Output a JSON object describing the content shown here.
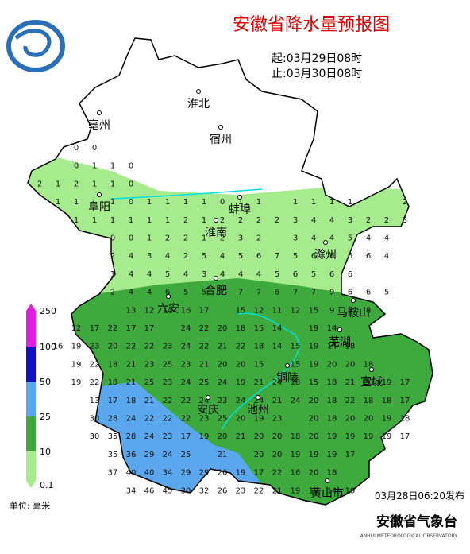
{
  "title": "安徽省降水量预报图",
  "period": {
    "start": "起:03月29日08时",
    "end": "止:03月30日08时"
  },
  "cities": [
    "淮北",
    "亳州",
    "宿州",
    "阜阳",
    "蚌埠",
    "淮南",
    "滁州",
    "合肥",
    "六安",
    "马鞍山",
    "芜湖",
    "铜陵",
    "宣城",
    "安庆",
    "池州",
    "黄山市"
  ],
  "legend": {
    "labels": [
      "250",
      "100",
      "50",
      "25",
      "10",
      "0.1"
    ],
    "unit": "单位: 毫米"
  },
  "footer": {
    "issued": "03月28日06:20发布",
    "agency": "安徽省气象台",
    "agency_en": "ANHUI METEOROLOGICAL OBSERVATORY"
  },
  "grid": {
    "rows": [
      [
        null,
        null,
        0,
        0,
        null,
        null,
        null,
        null,
        null,
        null,
        null,
        null,
        null,
        null,
        null,
        null,
        null,
        null,
        null,
        null,
        null
      ],
      [
        null,
        null,
        0,
        1,
        1,
        0,
        null,
        null,
        null,
        null,
        null,
        null,
        null,
        null,
        null,
        null,
        null,
        null,
        null,
        null,
        null
      ],
      [
        2,
        1,
        2,
        1,
        1,
        0,
        null,
        null,
        null,
        null,
        null,
        null,
        null,
        null,
        null,
        null,
        null,
        null,
        null,
        null,
        null
      ],
      [
        null,
        1,
        1,
        null,
        1,
        0,
        1,
        1,
        1,
        1,
        0,
        1,
        1,
        null,
        1,
        1,
        1,
        1,
        null,
        null,
        2
      ],
      [
        null,
        null,
        1,
        1,
        1,
        1,
        1,
        1,
        2,
        1,
        2,
        2,
        2,
        2,
        3,
        4,
        4,
        3,
        2,
        2,
        3
      ],
      [
        null,
        null,
        null,
        null,
        0,
        0,
        1,
        2,
        2,
        1,
        2,
        3,
        2,
        null,
        3,
        4,
        4,
        5,
        4,
        4,
        null
      ],
      [
        null,
        null,
        null,
        null,
        2,
        4,
        3,
        4,
        2,
        5,
        4,
        5,
        6,
        7,
        5,
        6,
        6,
        6,
        6,
        4,
        null
      ],
      [
        null,
        null,
        null,
        null,
        1,
        4,
        4,
        5,
        4,
        3,
        4,
        4,
        4,
        5,
        6,
        5,
        6,
        6,
        null,
        null,
        null
      ],
      [
        null,
        null,
        null,
        null,
        2,
        4,
        4,
        6,
        5,
        5,
        7,
        7,
        7,
        6,
        7,
        7,
        9,
        6,
        6,
        5,
        null
      ],
      [
        null,
        null,
        null,
        null,
        null,
        13,
        12,
        14,
        16,
        17,
        null,
        15,
        12,
        11,
        12,
        15,
        9,
        8,
        8,
        null,
        null
      ],
      [
        null,
        null,
        12,
        17,
        22,
        17,
        17,
        null,
        24,
        22,
        20,
        18,
        15,
        14,
        null,
        19,
        14,
        null,
        null,
        null,
        null
      ],
      [
        null,
        16,
        19,
        23,
        20,
        22,
        22,
        23,
        24,
        22,
        21,
        22,
        18,
        14,
        15,
        19,
        14,
        18,
        null,
        null,
        null
      ],
      [
        null,
        null,
        19,
        22,
        18,
        21,
        23,
        25,
        23,
        21,
        20,
        20,
        15,
        null,
        15,
        19,
        20,
        20,
        18,
        null,
        null
      ],
      [
        null,
        null,
        19,
        22,
        18,
        21,
        25,
        23,
        24,
        25,
        24,
        19,
        21,
        24,
        18,
        15,
        18,
        21,
        20,
        19,
        17
      ],
      [
        null,
        null,
        null,
        13,
        17,
        18,
        21,
        22,
        22,
        24,
        23,
        24,
        24,
        21,
        24,
        20,
        18,
        22,
        18,
        18,
        17
      ],
      [
        null,
        null,
        null,
        30,
        28,
        24,
        22,
        22,
        22,
        23,
        25,
        20,
        19,
        23,
        null,
        20,
        18,
        20,
        20,
        19,
        18
      ],
      [
        null,
        null,
        null,
        30,
        35,
        28,
        24,
        23,
        17,
        19,
        20,
        21,
        20,
        20,
        18,
        20,
        19,
        19,
        19,
        19,
        17
      ],
      [
        null,
        null,
        null,
        null,
        35,
        36,
        29,
        24,
        25,
        null,
        21,
        null,
        20,
        20,
        19,
        19,
        19,
        17,
        null,
        null,
        null
      ],
      [
        null,
        null,
        null,
        null,
        37,
        40,
        40,
        34,
        29,
        29,
        26,
        19,
        17,
        22,
        16,
        20,
        18,
        null,
        null,
        null,
        null
      ],
      [
        null,
        null,
        null,
        null,
        null,
        34,
        46,
        45,
        30,
        32,
        26,
        23,
        22,
        21,
        19,
        19,
        14,
        19,
        null,
        null,
        null
      ]
    ]
  }
}
